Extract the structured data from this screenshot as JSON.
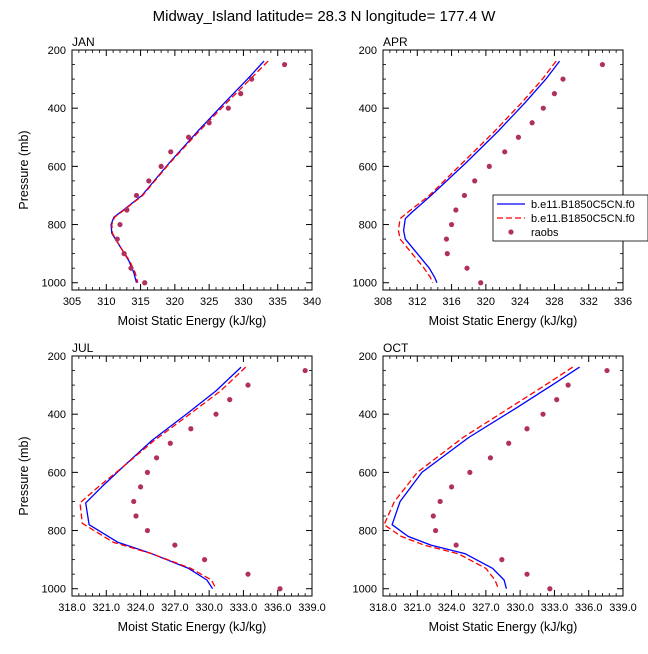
{
  "figure": {
    "title": "Midway_Island  latitude= 28.3 N longitude= 177.4 W"
  },
  "legend": {
    "entries": [
      {
        "label": "b.e11.B1850C5CN.f0",
        "style": "solid",
        "color": "#0000ff"
      },
      {
        "label": "b.e11.B1850C5CN.f0",
        "style": "dashed",
        "color": "#ff0000"
      },
      {
        "label": "raobs",
        "style": "dot",
        "color": "#b03060"
      }
    ]
  },
  "chart_data": [
    {
      "type": "line",
      "title": "JAN",
      "xlabel": "Moist Static Energy (kJ/kg)",
      "ylabel": "Pressure (mb)",
      "xlim": [
        305,
        340
      ],
      "ylim": [
        200,
        1025
      ],
      "y_inverted": true,
      "xticks": [
        305,
        310,
        315,
        320,
        325,
        330,
        335,
        340
      ],
      "xticklabels": [
        "305",
        "310",
        "315",
        "320",
        "325",
        "330",
        "335",
        "340"
      ],
      "yticks": [
        200,
        400,
        600,
        800,
        1000
      ],
      "yticklabels": [
        "200",
        "400",
        "600",
        "800",
        "1000"
      ],
      "series": [
        {
          "style": "solid",
          "color": "#0000ff",
          "points": [
            [
              333.0,
              238
            ],
            [
              330.6,
              300
            ],
            [
              327.3,
              380
            ],
            [
              323.3,
              480
            ],
            [
              319.1,
              590
            ],
            [
              315.2,
              700
            ],
            [
              312.5,
              750
            ],
            [
              311.1,
              775
            ],
            [
              310.7,
              800
            ],
            [
              310.8,
              830
            ],
            [
              312.0,
              875
            ],
            [
              313.3,
              925
            ],
            [
              314.0,
              965
            ],
            [
              314.4,
              1000
            ]
          ]
        },
        {
          "style": "dashed",
          "color": "#ff0000",
          "points": [
            [
              333.6,
              238
            ],
            [
              331.0,
              300
            ],
            [
              327.6,
              380
            ],
            [
              323.5,
              480
            ],
            [
              319.2,
              590
            ],
            [
              315.3,
              700
            ],
            [
              312.6,
              750
            ],
            [
              311.2,
              775
            ],
            [
              310.8,
              800
            ],
            [
              310.9,
              830
            ],
            [
              312.0,
              875
            ],
            [
              313.4,
              925
            ],
            [
              314.2,
              965
            ],
            [
              314.6,
              1000
            ]
          ]
        },
        {
          "style": "dot",
          "color": "#b03060",
          "points": [
            [
              336.0,
              250
            ],
            [
              331.2,
              300
            ],
            [
              329.6,
              350
            ],
            [
              327.8,
              400
            ],
            [
              325.0,
              450
            ],
            [
              322.0,
              500
            ],
            [
              319.4,
              550
            ],
            [
              318.0,
              600
            ],
            [
              316.2,
              650
            ],
            [
              314.4,
              700
            ],
            [
              313.0,
              750
            ],
            [
              312.0,
              800
            ],
            [
              311.6,
              850
            ],
            [
              312.6,
              900
            ],
            [
              313.6,
              950
            ],
            [
              315.6,
              1000
            ]
          ]
        }
      ]
    },
    {
      "type": "line",
      "title": "APR",
      "xlabel": "Moist Static Energy (kJ/kg)",
      "ylabel": "",
      "xlim": [
        308,
        336
      ],
      "ylim": [
        200,
        1025
      ],
      "y_inverted": true,
      "xticks": [
        308,
        312,
        316,
        320,
        324,
        328,
        332,
        336
      ],
      "xticklabels": [
        "308",
        "312",
        "316",
        "320",
        "324",
        "328",
        "332",
        "336"
      ],
      "yticks": [
        200,
        400,
        600,
        800,
        1000
      ],
      "yticklabels": [
        "200",
        "400",
        "600",
        "800",
        "1000"
      ],
      "series": [
        {
          "style": "solid",
          "color": "#0000ff",
          "points": [
            [
              328.6,
              238
            ],
            [
              327.0,
              300
            ],
            [
              324.6,
              380
            ],
            [
              321.4,
              480
            ],
            [
              317.6,
              590
            ],
            [
              313.6,
              700
            ],
            [
              311.3,
              760
            ],
            [
              310.6,
              780
            ],
            [
              310.4,
              820
            ],
            [
              310.6,
              850
            ],
            [
              312.0,
              900
            ],
            [
              313.4,
              950
            ],
            [
              314.0,
              980
            ],
            [
              314.3,
              1000
            ]
          ]
        },
        {
          "style": "dashed",
          "color": "#ff0000",
          "points": [
            [
              328.2,
              238
            ],
            [
              326.6,
              300
            ],
            [
              324.2,
              380
            ],
            [
              321.0,
              480
            ],
            [
              317.2,
              590
            ],
            [
              313.4,
              700
            ],
            [
              310.8,
              760
            ],
            [
              310.0,
              780
            ],
            [
              309.8,
              820
            ],
            [
              310.0,
              850
            ],
            [
              311.4,
              900
            ],
            [
              312.8,
              950
            ],
            [
              313.5,
              980
            ],
            [
              313.8,
              1000
            ]
          ]
        },
        {
          "style": "dot",
          "color": "#b03060",
          "points": [
            [
              333.6,
              250
            ],
            [
              329.0,
              300
            ],
            [
              328.0,
              350
            ],
            [
              326.7,
              400
            ],
            [
              325.4,
              450
            ],
            [
              323.8,
              500
            ],
            [
              322.2,
              550
            ],
            [
              320.4,
              600
            ],
            [
              318.7,
              650
            ],
            [
              317.5,
              700
            ],
            [
              316.5,
              750
            ],
            [
              316.0,
              800
            ],
            [
              315.4,
              850
            ],
            [
              315.5,
              900
            ],
            [
              317.8,
              950
            ],
            [
              319.4,
              1000
            ]
          ]
        }
      ]
    },
    {
      "type": "line",
      "title": "JUL",
      "xlabel": "Moist Static Energy (kJ/kg)",
      "ylabel": "Pressure (mb)",
      "xlim": [
        318,
        339
      ],
      "ylim": [
        200,
        1025
      ],
      "y_inverted": true,
      "xticks": [
        318,
        321,
        324,
        327,
        330,
        333,
        336,
        339
      ],
      "xticklabels": [
        "318.0",
        "321.0",
        "324.0",
        "327.0",
        "330.0",
        "333.0",
        "336.0",
        "339.0"
      ],
      "yticks": [
        200,
        400,
        600,
        800,
        1000
      ],
      "yticklabels": [
        "200",
        "400",
        "600",
        "800",
        "1000"
      ],
      "series": [
        {
          "style": "solid",
          "color": "#0000ff",
          "points": [
            [
              332.8,
              238
            ],
            [
              330.6,
              320
            ],
            [
              328.0,
              400
            ],
            [
              325.0,
              490
            ],
            [
              322.5,
              580
            ],
            [
              320.6,
              650
            ],
            [
              319.2,
              705
            ],
            [
              319.5,
              780
            ],
            [
              322.0,
              840
            ],
            [
              325.0,
              880
            ],
            [
              328.2,
              930
            ],
            [
              329.8,
              970
            ],
            [
              330.3,
              1000
            ]
          ]
        },
        {
          "style": "dashed",
          "color": "#ff0000",
          "points": [
            [
              333.2,
              238
            ],
            [
              331.0,
              320
            ],
            [
              328.3,
              400
            ],
            [
              325.2,
              490
            ],
            [
              322.5,
              580
            ],
            [
              320.3,
              650
            ],
            [
              318.7,
              705
            ],
            [
              318.9,
              775
            ],
            [
              321.6,
              840
            ],
            [
              325.0,
              880
            ],
            [
              328.4,
              930
            ],
            [
              330.2,
              970
            ],
            [
              330.6,
              1000
            ]
          ]
        },
        {
          "style": "dot",
          "color": "#b03060",
          "points": [
            [
              338.4,
              250
            ],
            [
              333.4,
              300
            ],
            [
              331.8,
              350
            ],
            [
              330.6,
              400
            ],
            [
              328.4,
              450
            ],
            [
              326.6,
              500
            ],
            [
              325.4,
              550
            ],
            [
              324.6,
              600
            ],
            [
              324.0,
              650
            ],
            [
              323.4,
              700
            ],
            [
              323.6,
              750
            ],
            [
              324.6,
              800
            ],
            [
              327.0,
              850
            ],
            [
              329.6,
              900
            ],
            [
              333.4,
              950
            ],
            [
              336.2,
              1000
            ]
          ]
        }
      ]
    },
    {
      "type": "line",
      "title": "OCT",
      "xlabel": "Moist Static Energy (kJ/kg)",
      "ylabel": "",
      "xlim": [
        318,
        339
      ],
      "ylim": [
        200,
        1025
      ],
      "y_inverted": true,
      "xticks": [
        318,
        321,
        324,
        327,
        330,
        333,
        336,
        339
      ],
      "xticklabels": [
        "318.0",
        "321.0",
        "324.0",
        "327.0",
        "330.0",
        "333.0",
        "336.0",
        "339.0"
      ],
      "yticks": [
        200,
        400,
        600,
        800,
        1000
      ],
      "yticklabels": [
        "200",
        "400",
        "600",
        "800",
        "1000"
      ],
      "series": [
        {
          "style": "solid",
          "color": "#0000ff",
          "points": [
            [
              335.2,
              238
            ],
            [
              332.8,
              300
            ],
            [
              329.6,
              380
            ],
            [
              325.5,
              480
            ],
            [
              321.4,
              600
            ],
            [
              319.5,
              700
            ],
            [
              318.8,
              780
            ],
            [
              320.2,
              820
            ],
            [
              322.2,
              850
            ],
            [
              325.2,
              880
            ],
            [
              327.6,
              930
            ],
            [
              328.6,
              970
            ],
            [
              328.8,
              1000
            ]
          ]
        },
        {
          "style": "dashed",
          "color": "#ff0000",
          "points": [
            [
              334.6,
              238
            ],
            [
              332.2,
              300
            ],
            [
              329.0,
              380
            ],
            [
              325.0,
              480
            ],
            [
              321.0,
              600
            ],
            [
              319.0,
              700
            ],
            [
              318.1,
              780
            ],
            [
              319.6,
              820
            ],
            [
              321.6,
              850
            ],
            [
              324.6,
              880
            ],
            [
              327.0,
              930
            ],
            [
              327.8,
              970
            ],
            [
              328.1,
              1000
            ]
          ]
        },
        {
          "style": "dot",
          "color": "#b03060",
          "points": [
            [
              337.6,
              250
            ],
            [
              334.2,
              300
            ],
            [
              333.2,
              350
            ],
            [
              332.0,
              400
            ],
            [
              330.6,
              450
            ],
            [
              329.0,
              500
            ],
            [
              327.4,
              550
            ],
            [
              325.6,
              600
            ],
            [
              324.0,
              650
            ],
            [
              323.0,
              700
            ],
            [
              322.4,
              750
            ],
            [
              322.6,
              800
            ],
            [
              324.4,
              850
            ],
            [
              328.4,
              900
            ],
            [
              330.6,
              950
            ],
            [
              332.6,
              1000
            ]
          ]
        }
      ]
    }
  ]
}
